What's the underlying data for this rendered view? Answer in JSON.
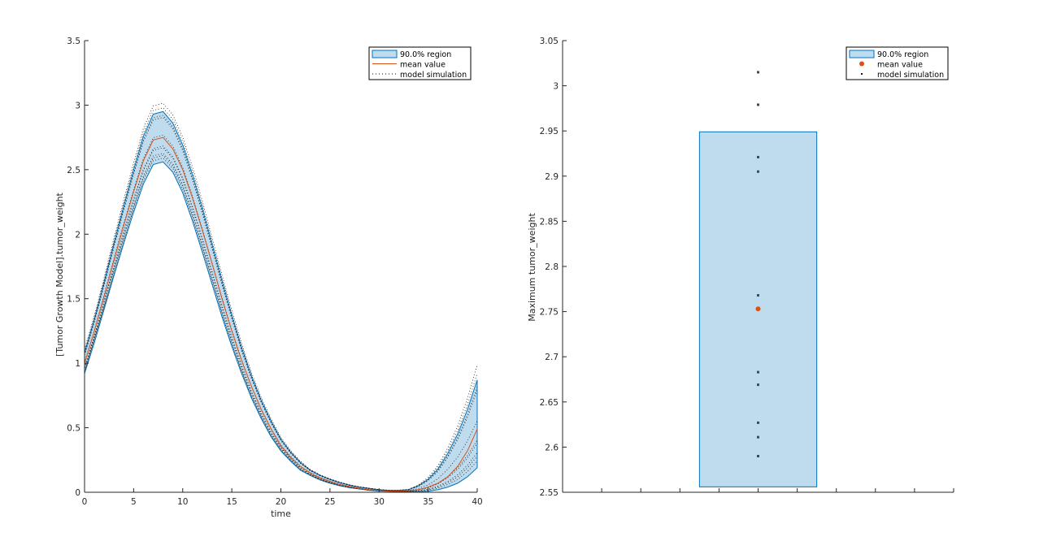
{
  "colors": {
    "band_fill": "#bedcee",
    "band_edge": "#0072bd",
    "mean": "#d95319",
    "sim": "#1a1a1a",
    "axis": "#262626"
  },
  "chart_data": [
    {
      "type": "line",
      "xlabel": "time",
      "ylabel": "[Tumor Growth Model].tumor_weight",
      "xlim": [
        0,
        40
      ],
      "ylim": [
        0,
        3.5
      ],
      "xticks": [
        "0",
        "5",
        "10",
        "15",
        "20",
        "25",
        "30",
        "35",
        "40"
      ],
      "yticks": [
        "0",
        "0.5",
        "1",
        "1.5",
        "2",
        "2.5",
        "3",
        "3.5"
      ],
      "legend": {
        "placement": "top-right",
        "entries": [
          "90.0% region",
          "mean value",
          "model simulation"
        ]
      },
      "x": [
        0,
        1,
        2,
        3,
        4,
        5,
        6,
        7,
        8,
        9,
        10,
        11,
        12,
        13,
        14,
        15,
        16,
        17,
        18,
        19,
        20,
        21,
        22,
        23,
        24,
        25,
        26,
        27,
        28,
        29,
        30,
        31,
        32,
        33,
        34,
        35,
        36,
        37,
        38,
        39,
        40
      ],
      "mean": [
        1.0,
        1.25,
        1.52,
        1.8,
        2.07,
        2.33,
        2.57,
        2.73,
        2.75,
        2.66,
        2.5,
        2.28,
        2.03,
        1.77,
        1.5,
        1.25,
        1.02,
        0.82,
        0.64,
        0.49,
        0.36,
        0.27,
        0.2,
        0.15,
        0.11,
        0.085,
        0.06,
        0.045,
        0.03,
        0.02,
        0.015,
        0.01,
        0.01,
        0.012,
        0.02,
        0.04,
        0.07,
        0.12,
        0.2,
        0.32,
        0.49
      ],
      "upper_90": [
        1.08,
        1.34,
        1.63,
        1.93,
        2.22,
        2.5,
        2.76,
        2.93,
        2.95,
        2.86,
        2.69,
        2.46,
        2.2,
        1.92,
        1.64,
        1.37,
        1.12,
        0.9,
        0.71,
        0.55,
        0.41,
        0.31,
        0.23,
        0.17,
        0.13,
        0.1,
        0.075,
        0.055,
        0.04,
        0.03,
        0.02,
        0.015,
        0.015,
        0.02,
        0.05,
        0.1,
        0.18,
        0.3,
        0.45,
        0.64,
        0.87
      ],
      "lower_90": [
        0.92,
        1.16,
        1.42,
        1.68,
        1.93,
        2.17,
        2.39,
        2.54,
        2.56,
        2.48,
        2.32,
        2.1,
        1.86,
        1.61,
        1.36,
        1.13,
        0.92,
        0.73,
        0.57,
        0.43,
        0.32,
        0.24,
        0.17,
        0.13,
        0.095,
        0.07,
        0.05,
        0.035,
        0.025,
        0.015,
        0.01,
        0.007,
        0.005,
        0.005,
        0.005,
        0.008,
        0.02,
        0.04,
        0.07,
        0.12,
        0.19
      ],
      "simulation_peaks": [
        3.015,
        2.979,
        2.921,
        2.905,
        2.768,
        2.683,
        2.669,
        2.627,
        2.611,
        2.59
      ]
    },
    {
      "type": "scatter",
      "xlabel": "",
      "ylabel": "Maximum tumor_weight",
      "ylim": [
        2.55,
        3.05
      ],
      "yticks": [
        "2.55",
        "2.6",
        "2.65",
        "2.7",
        "2.75",
        "2.8",
        "2.85",
        "2.9",
        "2.95",
        "3",
        "3.05"
      ],
      "legend": {
        "placement": "top-right",
        "entries": [
          "90.0% region",
          "mean value",
          "model simulation"
        ]
      },
      "region_90": [
        2.556,
        2.949
      ],
      "mean": 2.753,
      "simulations": [
        3.015,
        2.979,
        2.921,
        2.905,
        2.768,
        2.683,
        2.669,
        2.627,
        2.611,
        2.59
      ]
    }
  ]
}
